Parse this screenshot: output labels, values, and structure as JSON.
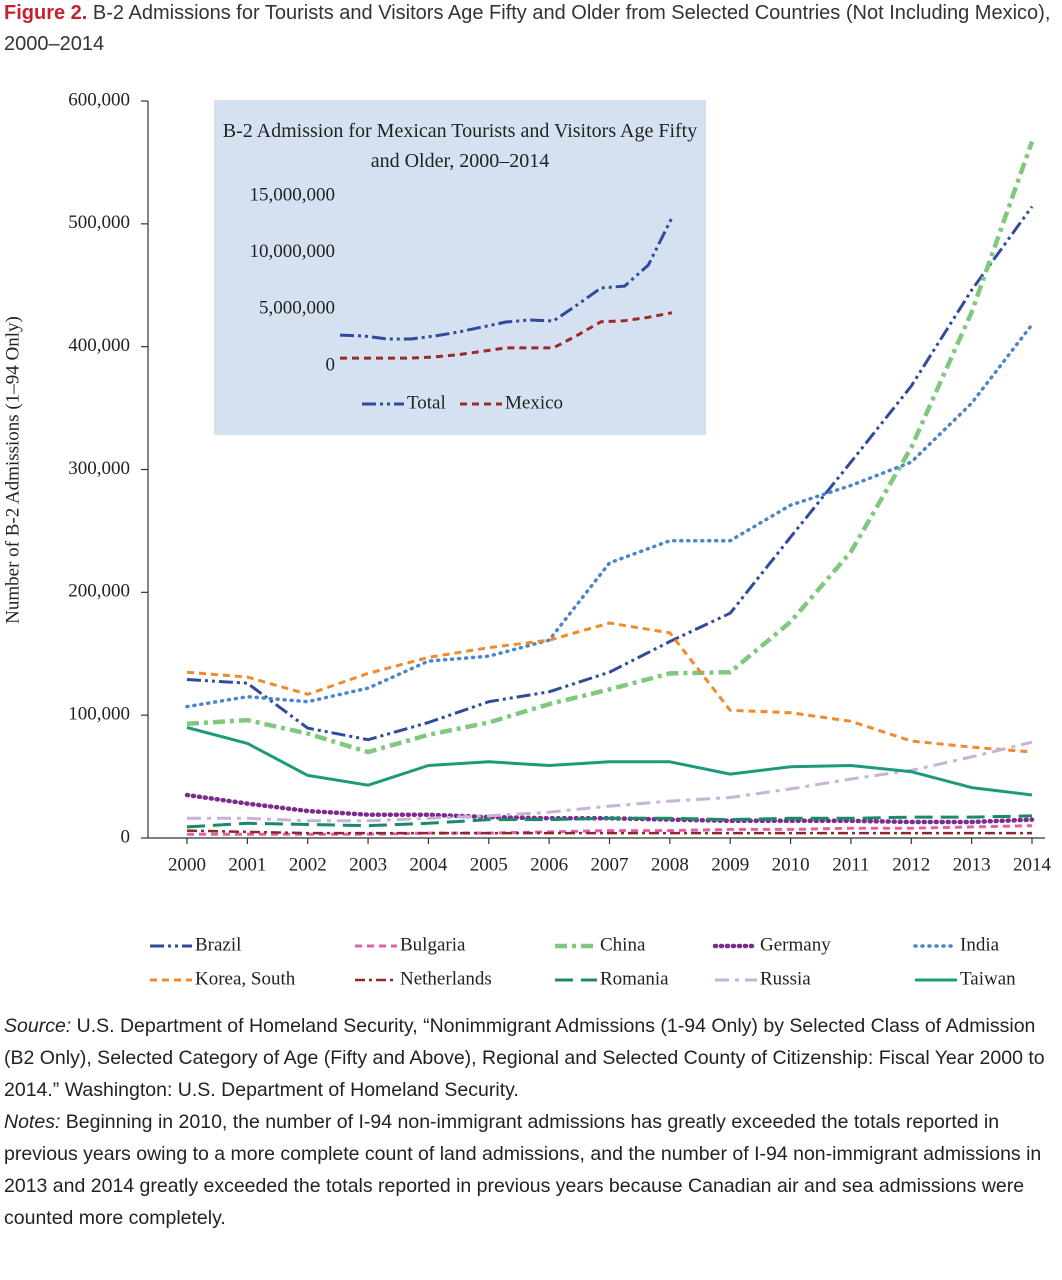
{
  "title_label": "Figure 2.",
  "title": "B-2 Admissions for Tourists and Visitors Age Fifty and Older from Selected Countries (Not Including Mexico), 2000–2014",
  "chart_data": [
    {
      "type": "line",
      "y_label": "Number of B-2 Admissions (1–94 Only)",
      "categories": [
        "2000",
        "2001",
        "2002",
        "2003",
        "2004",
        "2005",
        "2006",
        "2007",
        "2008",
        "2009",
        "2010",
        "2011",
        "2012",
        "2013",
        "2014"
      ],
      "ylim": [
        0,
        600000
      ],
      "yticks": [
        0,
        {
          "value": 100000,
          "label": "100,000"
        },
        {
          "value": 200000,
          "label": "200,000"
        },
        {
          "value": 300000,
          "label": "300,000"
        },
        {
          "value": 400000,
          "label": "400,000"
        },
        {
          "value": 500000,
          "label": "500,000"
        },
        {
          "value": 600000,
          "label": "600,000"
        }
      ],
      "legend": "bottom",
      "series": [
        {
          "name": "Brazil",
          "color": "#2f4b9b",
          "line_style": "dash-dot-dot",
          "values": [
            129000,
            126000,
            89500,
            80000,
            94000,
            111000,
            119000,
            135000,
            160000,
            183000,
            245000,
            306000,
            368000,
            446000,
            514000
          ]
        },
        {
          "name": "Bulgaria",
          "color": "#e060a6",
          "line_style": "dashed",
          "values": [
            3000,
            3000,
            3000,
            3000,
            4000,
            4000,
            5000,
            6000,
            6000,
            7000,
            7000,
            8000,
            8000,
            9000,
            10000
          ]
        },
        {
          "name": "China",
          "color": "#80c87e",
          "line_style": "dash-dot-thick",
          "values": [
            93000,
            96000,
            85000,
            70000,
            84000,
            94000,
            109000,
            121000,
            134000,
            135000,
            176000,
            233000,
            318000,
            428000,
            567000
          ]
        },
        {
          "name": "Germany",
          "color": "#7b2c8c",
          "line_style": "dotted-thick",
          "values": [
            35000,
            28000,
            22000,
            19000,
            19000,
            17000,
            16000,
            16000,
            15000,
            14000,
            14000,
            14000,
            13000,
            13000,
            15000
          ]
        },
        {
          "name": "India",
          "color": "#4a86c8",
          "line_style": "dotted",
          "values": [
            107000,
            115000,
            111000,
            122000,
            144000,
            148000,
            161000,
            224000,
            242000,
            242000,
            271000,
            287000,
            306000,
            354000,
            418000
          ]
        },
        {
          "name": "Korea, South",
          "color": "#f08a2c",
          "line_style": "dashed",
          "values": [
            135000,
            131000,
            117000,
            134000,
            147000,
            155000,
            161000,
            175000,
            167000,
            104000,
            102000,
            95000,
            79000,
            74000,
            70000
          ]
        },
        {
          "name": "Netherlands",
          "color": "#8b2a2a",
          "line_style": "dash-dot",
          "values": [
            6000,
            5000,
            4000,
            4000,
            4000,
            4000,
            4000,
            4000,
            4000,
            4000,
            4000,
            4000,
            4000,
            4000,
            4000
          ]
        },
        {
          "name": "Romania",
          "color": "#1b8a6b",
          "line_style": "long-dash",
          "values": [
            9000,
            12000,
            11000,
            10000,
            12000,
            15000,
            15000,
            16000,
            16000,
            15000,
            16000,
            16000,
            17000,
            17000,
            18000
          ]
        },
        {
          "name": "Russia",
          "color": "#c9b2da",
          "line_style": "long-dash-dot",
          "values": [
            16000,
            16000,
            14000,
            14000,
            16000,
            18000,
            21000,
            26000,
            30000,
            33000,
            40000,
            48000,
            55000,
            66000,
            78000
          ]
        },
        {
          "name": "Taiwan",
          "color": "#1d9a7b",
          "line_style": "solid",
          "values": [
            90000,
            77000,
            51000,
            43000,
            59000,
            62000,
            59000,
            62000,
            62000,
            52000,
            58000,
            59000,
            54000,
            41000,
            35000
          ]
        }
      ]
    },
    {
      "type": "line",
      "title": "B-2 Admission for Mexican Tourists and Visitors Age Fifty and Older, 2000–2014",
      "background": "#d5e1f0",
      "ylim": [
        0,
        15000000
      ],
      "yticks": [
        0,
        {
          "value": 5000000,
          "label": "5,000,000"
        },
        {
          "value": 10000000,
          "label": "10,000,000"
        },
        {
          "value": 15000000,
          "label": "15,000,000"
        }
      ],
      "legend": "bottom",
      "series": [
        {
          "name": "Total",
          "color": "#2f4b9b",
          "line_style": "dash-dot-dot",
          "values": [
            2730000,
            2650000,
            2380000,
            2380000,
            2650000,
            3000000,
            3440000,
            3880000,
            4060000,
            3970000,
            5380000,
            6880000,
            7050000,
            8900000,
            13100000
          ]
        },
        {
          "name": "Mexico",
          "color": "#9b2a2a",
          "line_style": "dashed",
          "values": [
            700000,
            700000,
            700000,
            700000,
            800000,
            1000000,
            1300000,
            1600000,
            1600000,
            1600000,
            2700000,
            3900000,
            4000000,
            4300000,
            4700000
          ]
        }
      ]
    }
  ],
  "footer": {
    "source_label": "Source:",
    "source": "U.S. Department of Homeland Security, “Nonimmigrant Admissions (1-94 Only) by Selected Class of Admission (B2 Only), Selected Category of Age (Fifty and Above), Regional and Selected County of Citizenship: Fiscal Year 2000 to 2014.” Washington: U.S. Department of Homeland Security.",
    "notes_label": "Notes:",
    "notes": "Beginning in 2010, the number of I-94 non-immigrant admissions has greatly exceeded the totals reported in previous years owing to a more complete count of land admissions, and the number of I-94 non-immigrant admissions in 2013 and 2014 greatly exceeded the totals reported in previous years because Canadian air and sea admissions were counted more completely."
  }
}
